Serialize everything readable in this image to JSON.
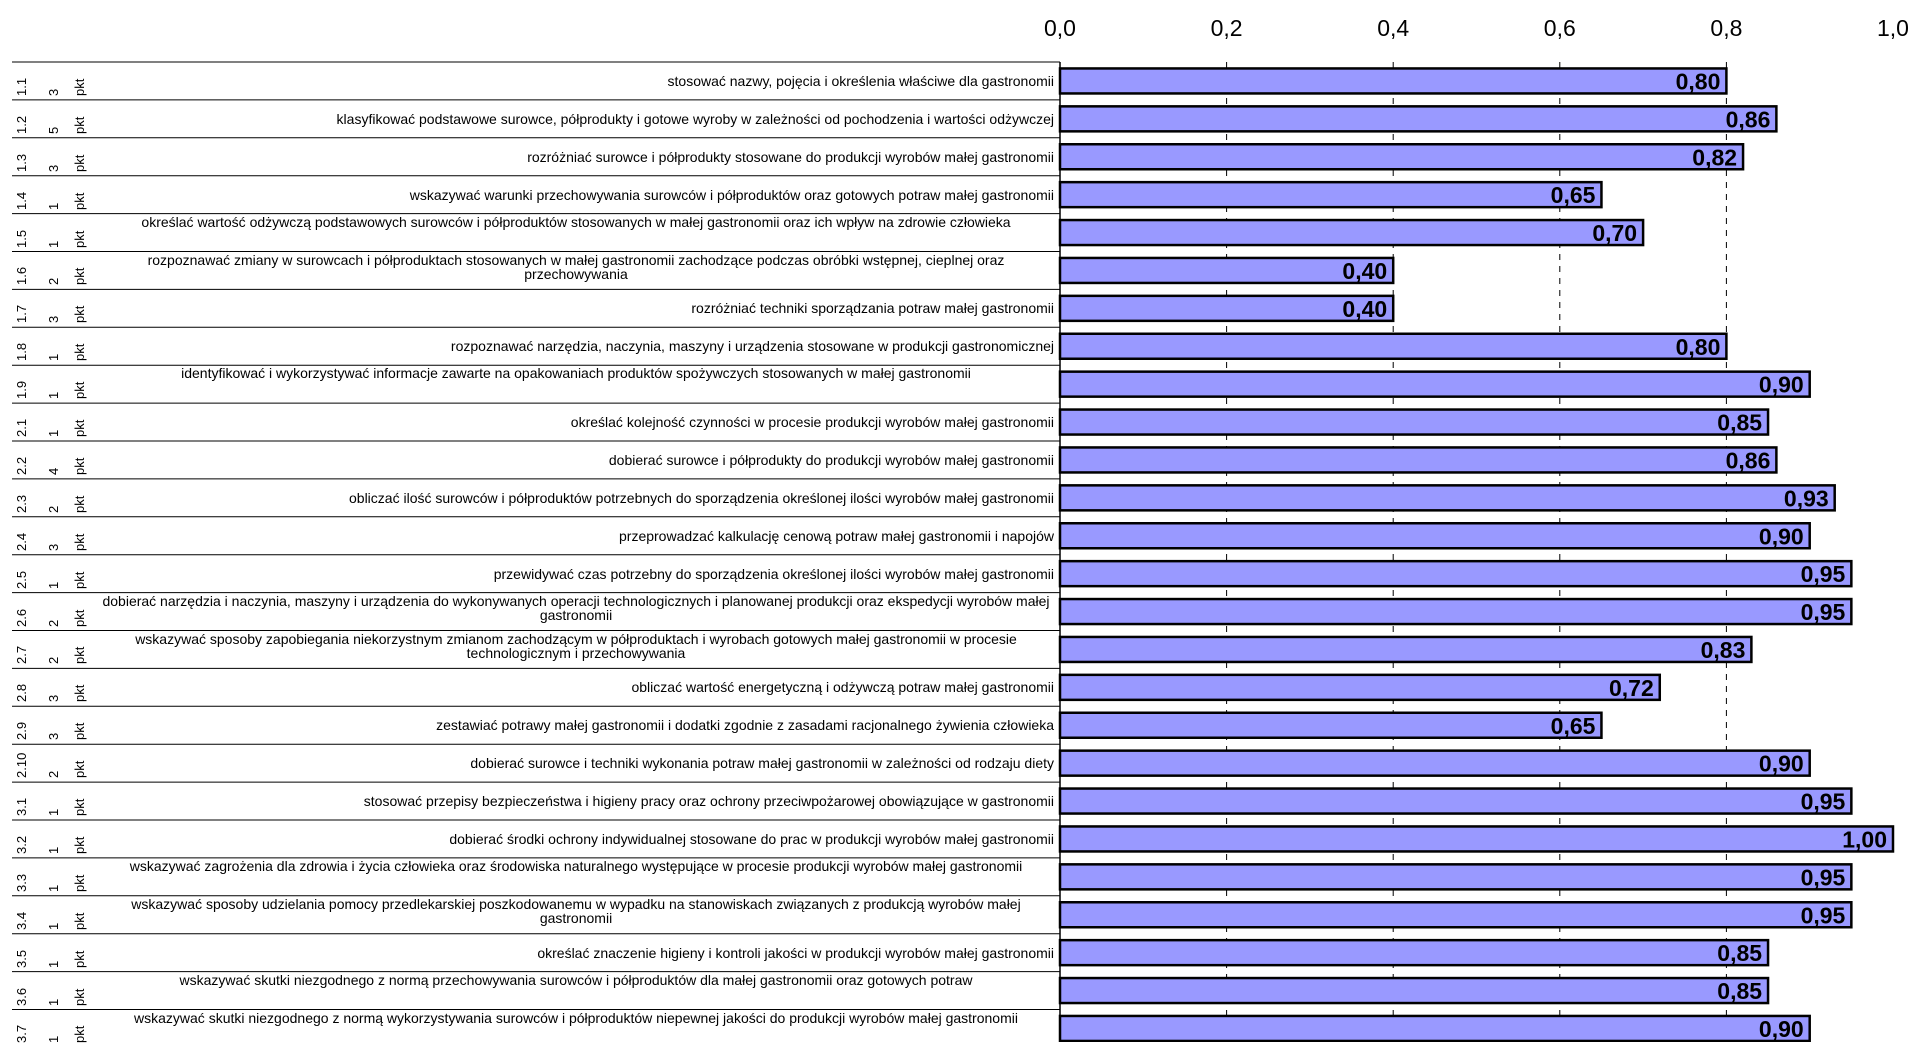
{
  "chart_data": {
    "type": "bar",
    "orientation": "horizontal",
    "title": "",
    "xlabel": "",
    "ylabel": "",
    "xlim": [
      0,
      1
    ],
    "x_ticks": [
      "0,0",
      "0,2",
      "0,4",
      "0,6",
      "0,8",
      "1,0"
    ],
    "x_axis_position": "top",
    "grid": "vertical dashed",
    "legend": "none",
    "bar_color": "#9999ff",
    "bar_edge_color": "#000000",
    "categories": [
      {
        "code": "1.1",
        "points": "3",
        "unit": "pkt",
        "label": "stosować nazwy, pojęcia i określenia właściwe dla gastronomii",
        "value": 0.8,
        "value_label": "0,80"
      },
      {
        "code": "1.2",
        "points": "5",
        "unit": "pkt",
        "label": "klasyfikować podstawowe surowce, półprodukty i gotowe wyroby w zależności od pochodzenia i wartości odżywczej",
        "value": 0.86,
        "value_label": "0,86"
      },
      {
        "code": "1.3",
        "points": "3",
        "unit": "pkt",
        "label": "rozróżniać surowce i półprodukty stosowane do produkcji wyrobów małej gastronomii",
        "value": 0.82,
        "value_label": "0,82"
      },
      {
        "code": "1.4",
        "points": "1",
        "unit": "pkt",
        "label": "wskazywać warunki przechowywania surowców i półproduktów oraz gotowych potraw małej gastronomii",
        "value": 0.65,
        "value_label": "0,65"
      },
      {
        "code": "1.5",
        "points": "1",
        "unit": "pkt",
        "label": "określać wartość odżywczą podstawowych surowców i półproduktów stosowanych w małej gastronomii oraz ich wpływ na zdrowie człowieka",
        "value": 0.7,
        "value_label": "0,70"
      },
      {
        "code": "1.6",
        "points": "2",
        "unit": "pkt",
        "label": "rozpoznawać zmiany w surowcach i półproduktach stosowanych w małej gastronomii zachodzące podczas obróbki wstępnej, cieplnej oraz przechowywania",
        "value": 0.4,
        "value_label": "0,40"
      },
      {
        "code": "1.7",
        "points": "3",
        "unit": "pkt",
        "label": "rozróżniać techniki sporządzania potraw małej gastronomii",
        "value": 0.4,
        "value_label": "0,40"
      },
      {
        "code": "1.8",
        "points": "1",
        "unit": "pkt",
        "label": "rozpoznawać narzędzia, naczynia, maszyny i urządzenia stosowane w produkcji gastronomicznej",
        "value": 0.8,
        "value_label": "0,80"
      },
      {
        "code": "1.9",
        "points": "1",
        "unit": "pkt",
        "label": "identyfikować i wykorzystywać informacje zawarte na opakowaniach produktów spożywczych stosowanych w małej gastronomii",
        "value": 0.9,
        "value_label": "0,90"
      },
      {
        "code": "2.1",
        "points": "1",
        "unit": "pkt",
        "label": "określać kolejność czynności w procesie produkcji wyrobów małej gastronomii",
        "value": 0.85,
        "value_label": "0,85"
      },
      {
        "code": "2.2",
        "points": "4",
        "unit": "pkt",
        "label": "dobierać surowce i półprodukty do produkcji wyrobów małej gastronomii",
        "value": 0.86,
        "value_label": "0,86"
      },
      {
        "code": "2.3",
        "points": "2",
        "unit": "pkt",
        "label": "obliczać ilość surowców i półproduktów potrzebnych do sporządzenia określonej ilości wyrobów małej gastronomii",
        "value": 0.93,
        "value_label": "0,93"
      },
      {
        "code": "2.4",
        "points": "3",
        "unit": "pkt",
        "label": "przeprowadzać kalkulację cenową potraw małej gastronomii i napojów",
        "value": 0.9,
        "value_label": "0,90"
      },
      {
        "code": "2.5",
        "points": "1",
        "unit": "pkt",
        "label": "przewidywać czas potrzebny do sporządzenia określonej ilości wyrobów małej gastronomii",
        "value": 0.95,
        "value_label": "0,95"
      },
      {
        "code": "2.6",
        "points": "2",
        "unit": "pkt",
        "label": "dobierać narzędzia i naczynia, maszyny i urządzenia do wykonywanych operacji technologicznych i planowanej produkcji oraz ekspedycji wyrobów małej gastronomii",
        "value": 0.95,
        "value_label": "0,95"
      },
      {
        "code": "2.7",
        "points": "2",
        "unit": "pkt",
        "label": "wskazywać sposoby zapobiegania niekorzystnym zmianom zachodzącym w półproduktach i wyrobach gotowych małej gastronomii w procesie technologicznym i przechowywania",
        "value": 0.83,
        "value_label": "0,83"
      },
      {
        "code": "2.8",
        "points": "3",
        "unit": "pkt",
        "label": "obliczać wartość energetyczną i odżywczą potraw małej gastronomii",
        "value": 0.72,
        "value_label": "0,72"
      },
      {
        "code": "2.9",
        "points": "3",
        "unit": "pkt",
        "label": "zestawiać potrawy małej gastronomii i dodatki zgodnie z zasadami racjonalnego żywienia człowieka",
        "value": 0.65,
        "value_label": "0,65"
      },
      {
        "code": "2.10",
        "points": "2",
        "unit": "pkt",
        "label": "dobierać surowce i techniki wykonania potraw małej gastronomii w zależności od rodzaju diety",
        "value": 0.9,
        "value_label": "0,90"
      },
      {
        "code": "3.1",
        "points": "1",
        "unit": "pkt",
        "label": "stosować przepisy bezpieczeństwa i higieny pracy oraz ochrony przeciwpożarowej obowiązujące w gastronomii",
        "value": 0.95,
        "value_label": "0,95"
      },
      {
        "code": "3.2",
        "points": "1",
        "unit": "pkt",
        "label": "dobierać środki ochrony indywidualnej stosowane do prac w produkcji wyrobów małej gastronomii",
        "value": 1.0,
        "value_label": "1,00"
      },
      {
        "code": "3.3",
        "points": "1",
        "unit": "pkt",
        "label": "wskazywać zagrożenia dla zdrowia i życia człowieka oraz środowiska naturalnego występujące w procesie produkcji wyrobów małej gastronomii",
        "value": 0.95,
        "value_label": "0,95"
      },
      {
        "code": "3.4",
        "points": "1",
        "unit": "pkt",
        "label": "wskazywać sposoby udzielania pomocy przedlekarskiej poszkodowanemu w wypadku na stanowiskach związanych z produkcją wyrobów małej gastronomii",
        "value": 0.95,
        "value_label": "0,95"
      },
      {
        "code": "3.5",
        "points": "1",
        "unit": "pkt",
        "label": "określać znaczenie higieny i kontroli jakości w produkcji wyrobów małej gastronomii",
        "value": 0.85,
        "value_label": "0,85"
      },
      {
        "code": "3.6",
        "points": "1",
        "unit": "pkt",
        "label": "wskazywać skutki niezgodnego z normą przechowywania surowców i półproduktów dla małej gastronomii oraz gotowych potraw",
        "value": 0.85,
        "value_label": "0,85"
      },
      {
        "code": "3.7",
        "points": "1",
        "unit": "pkt",
        "label": "wskazywać skutki niezgodnego z normą wykorzystywania surowców i półproduktów niepewnej jakości do produkcji wyrobów małej gastronomii",
        "value": 0.9,
        "value_label": "0,90"
      }
    ]
  }
}
